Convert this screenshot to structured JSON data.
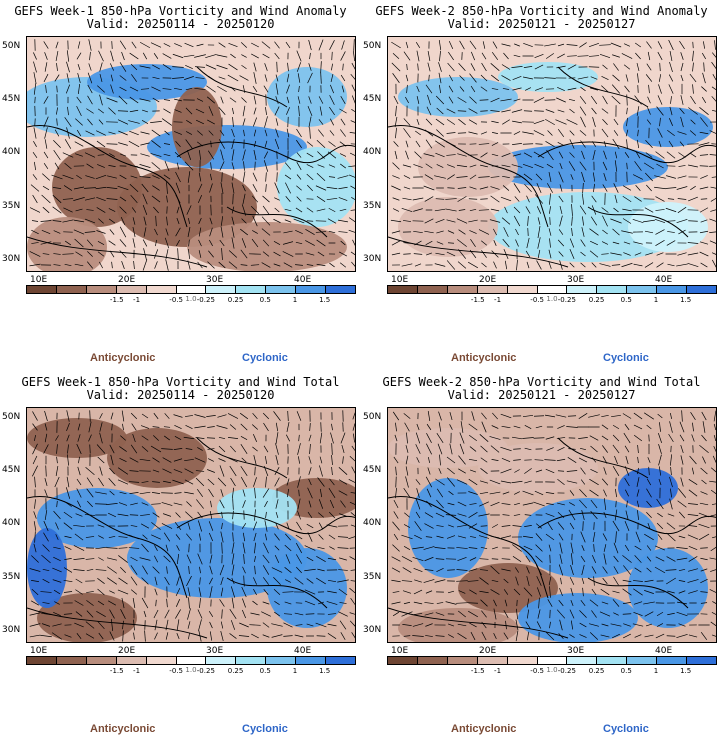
{
  "panels": [
    {
      "title": "GEFS Week-1 850-hPa Vorticity and Wind Anomaly",
      "valid": "Valid: 20250114 - 20250120"
    },
    {
      "title": "GEFS Week-2 850-hPa Vorticity and Wind Anomaly",
      "valid": "Valid: 20250121 - 20250127"
    },
    {
      "title": "GEFS Week-1 850-hPa Vorticity and Wind Total",
      "valid": "Valid: 20250114 - 20250120"
    },
    {
      "title": "GEFS Week-2 850-hPa Vorticity and Wind Total",
      "valid": "Valid: 20250121 - 20250127"
    }
  ],
  "lat_ticks": [
    "50N",
    "45N",
    "40N",
    "35N",
    "30N"
  ],
  "lon_ticks": [
    "10E",
    "20E",
    "30E",
    "40E"
  ],
  "colorbar": {
    "labels": [
      "-1.5",
      "-1",
      "-0.5",
      "-0.25",
      "0.25",
      "0.5",
      "1",
      "1.5"
    ],
    "center_label": "1.0",
    "colors": [
      "#6e4533",
      "#8f6250",
      "#b88d7d",
      "#dcbcb1",
      "#f1d9d0",
      "#ffffff",
      "#cdf2fb",
      "#a3e3f3",
      "#7cc3ee",
      "#4a97e6",
      "#2e6fd9"
    ]
  },
  "legend": {
    "anticyclonic": "Anticyclonic",
    "cyclonic": "Cyclonic"
  }
}
